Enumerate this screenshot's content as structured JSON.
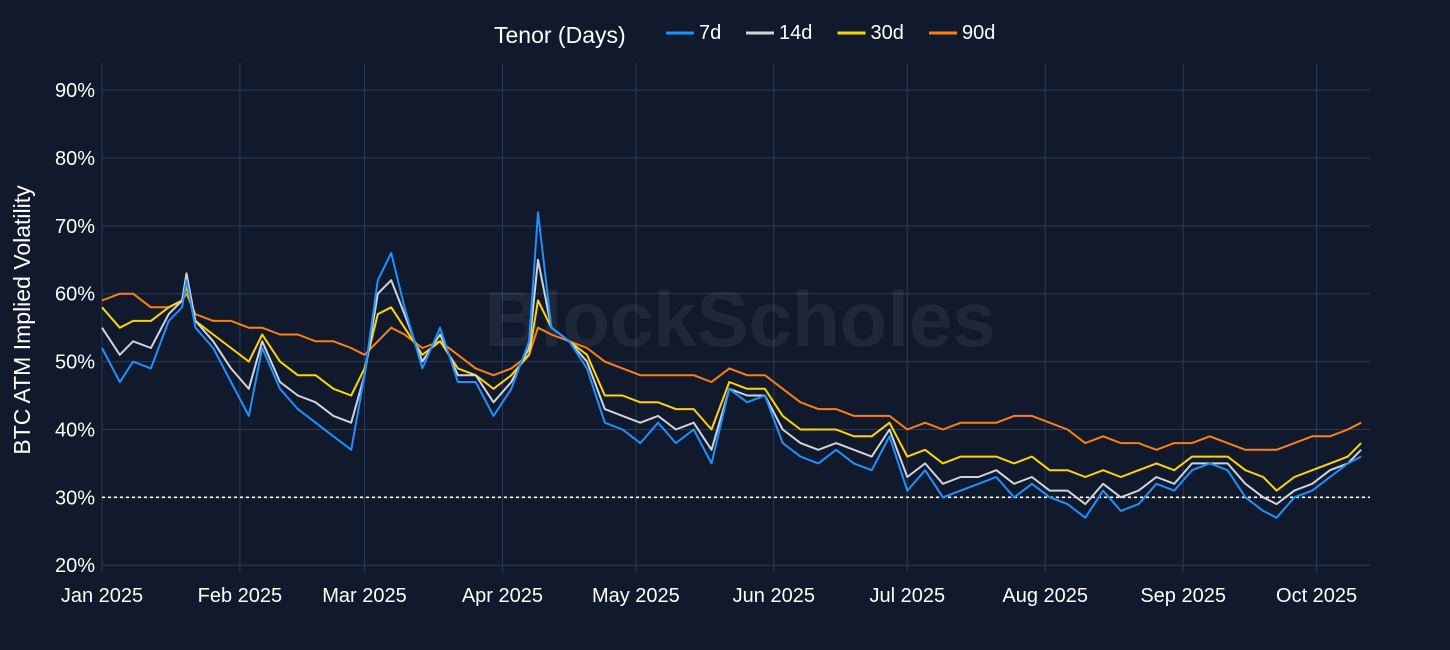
{
  "watermark": "BlockScholes",
  "legend": {
    "title": "Tenor (Days)",
    "items": [
      {
        "label": "7d",
        "color": "#1e90ff"
      },
      {
        "label": "14d",
        "color": "#cfd3da"
      },
      {
        "label": "30d",
        "color": "#ffd400"
      },
      {
        "label": "90d",
        "color": "#ff7f0e"
      }
    ]
  },
  "chart_data": {
    "type": "line",
    "title": "",
    "ylabel": "BTC ATM Implied Volatility",
    "xlabel": "",
    "ylim": [
      0.19,
      0.94
    ],
    "xlim": [
      "2025-01-01",
      "2025-10-13"
    ],
    "yticks": [
      {
        "value": 0.2,
        "label": "20%"
      },
      {
        "value": 0.3,
        "label": "30%"
      },
      {
        "value": 0.4,
        "label": "40%"
      },
      {
        "value": 0.5,
        "label": "50%"
      },
      {
        "value": 0.6,
        "label": "60%"
      },
      {
        "value": 0.7,
        "label": "70%"
      },
      {
        "value": 0.8,
        "label": "80%"
      },
      {
        "value": 0.9,
        "label": "90%"
      }
    ],
    "xticks": [
      {
        "value": "2025-01-01",
        "label": "Jan 2025"
      },
      {
        "value": "2025-02-01",
        "label": "Feb 2025"
      },
      {
        "value": "2025-03-01",
        "label": "Mar 2025"
      },
      {
        "value": "2025-04-01",
        "label": "Apr 2025"
      },
      {
        "value": "2025-05-01",
        "label": "May 2025"
      },
      {
        "value": "2025-06-01",
        "label": "Jun 2025"
      },
      {
        "value": "2025-07-01",
        "label": "Jul 2025"
      },
      {
        "value": "2025-08-01",
        "label": "Aug 2025"
      },
      {
        "value": "2025-09-01",
        "label": "Sep 2025"
      },
      {
        "value": "2025-10-01",
        "label": "Oct 2025"
      }
    ],
    "reference_line": {
      "value": 0.3,
      "style": "dotted",
      "color": "#ffffff"
    },
    "grid": true,
    "legend_placement": "top-center",
    "x": [
      "2025-01-01",
      "2025-01-05",
      "2025-01-08",
      "2025-01-12",
      "2025-01-16",
      "2025-01-19",
      "2025-01-20",
      "2025-01-22",
      "2025-01-26",
      "2025-01-30",
      "2025-02-03",
      "2025-02-06",
      "2025-02-10",
      "2025-02-14",
      "2025-02-18",
      "2025-02-22",
      "2025-02-26",
      "2025-03-01",
      "2025-03-04",
      "2025-03-07",
      "2025-03-10",
      "2025-03-14",
      "2025-03-18",
      "2025-03-22",
      "2025-03-26",
      "2025-03-30",
      "2025-04-03",
      "2025-04-07",
      "2025-04-09",
      "2025-04-12",
      "2025-04-16",
      "2025-04-20",
      "2025-04-24",
      "2025-04-28",
      "2025-05-02",
      "2025-05-06",
      "2025-05-10",
      "2025-05-14",
      "2025-05-18",
      "2025-05-22",
      "2025-05-26",
      "2025-05-30",
      "2025-06-03",
      "2025-06-07",
      "2025-06-11",
      "2025-06-15",
      "2025-06-19",
      "2025-06-23",
      "2025-06-27",
      "2025-07-01",
      "2025-07-05",
      "2025-07-09",
      "2025-07-13",
      "2025-07-17",
      "2025-07-21",
      "2025-07-25",
      "2025-07-29",
      "2025-08-02",
      "2025-08-06",
      "2025-08-10",
      "2025-08-14",
      "2025-08-18",
      "2025-08-22",
      "2025-08-26",
      "2025-08-30",
      "2025-09-03",
      "2025-09-07",
      "2025-09-11",
      "2025-09-15",
      "2025-09-19",
      "2025-09-22",
      "2025-09-26",
      "2025-09-30",
      "2025-10-04",
      "2025-10-08",
      "2025-10-11"
    ],
    "series": [
      {
        "name": "7d",
        "color": "#1e90ff",
        "values": [
          0.52,
          0.47,
          0.5,
          0.49,
          0.56,
          0.58,
          0.62,
          0.55,
          0.52,
          0.47,
          0.42,
          0.52,
          0.46,
          0.43,
          0.41,
          0.39,
          0.37,
          0.48,
          0.62,
          0.66,
          0.58,
          0.49,
          0.55,
          0.47,
          0.47,
          0.42,
          0.46,
          0.53,
          0.72,
          0.55,
          0.53,
          0.49,
          0.41,
          0.4,
          0.38,
          0.41,
          0.38,
          0.4,
          0.35,
          0.46,
          0.44,
          0.45,
          0.38,
          0.36,
          0.35,
          0.37,
          0.35,
          0.34,
          0.39,
          0.31,
          0.34,
          0.3,
          0.31,
          0.32,
          0.33,
          0.3,
          0.32,
          0.3,
          0.29,
          0.27,
          0.31,
          0.28,
          0.29,
          0.32,
          0.31,
          0.34,
          0.35,
          0.34,
          0.3,
          0.28,
          0.27,
          0.3,
          0.31,
          0.33,
          0.35,
          0.36
        ]
      },
      {
        "name": "14d",
        "color": "#cfd3da",
        "values": [
          0.55,
          0.51,
          0.53,
          0.52,
          0.57,
          0.59,
          0.63,
          0.56,
          0.53,
          0.49,
          0.46,
          0.53,
          0.47,
          0.45,
          0.44,
          0.42,
          0.41,
          0.48,
          0.6,
          0.62,
          0.57,
          0.5,
          0.54,
          0.48,
          0.48,
          0.44,
          0.47,
          0.52,
          0.65,
          0.55,
          0.53,
          0.5,
          0.43,
          0.42,
          0.41,
          0.42,
          0.4,
          0.41,
          0.37,
          0.46,
          0.45,
          0.45,
          0.4,
          0.38,
          0.37,
          0.38,
          0.37,
          0.36,
          0.4,
          0.33,
          0.35,
          0.32,
          0.33,
          0.33,
          0.34,
          0.32,
          0.33,
          0.31,
          0.31,
          0.29,
          0.32,
          0.3,
          0.31,
          0.33,
          0.32,
          0.35,
          0.35,
          0.35,
          0.32,
          0.3,
          0.29,
          0.31,
          0.32,
          0.34,
          0.35,
          0.37
        ]
      },
      {
        "name": "30d",
        "color": "#ffd400",
        "values": [
          0.58,
          0.55,
          0.56,
          0.56,
          0.58,
          0.59,
          0.61,
          0.56,
          0.54,
          0.52,
          0.5,
          0.54,
          0.5,
          0.48,
          0.48,
          0.46,
          0.45,
          0.49,
          0.57,
          0.58,
          0.55,
          0.51,
          0.53,
          0.49,
          0.48,
          0.46,
          0.48,
          0.51,
          0.59,
          0.55,
          0.53,
          0.51,
          0.45,
          0.45,
          0.44,
          0.44,
          0.43,
          0.43,
          0.4,
          0.47,
          0.46,
          0.46,
          0.42,
          0.4,
          0.4,
          0.4,
          0.39,
          0.39,
          0.41,
          0.36,
          0.37,
          0.35,
          0.36,
          0.36,
          0.36,
          0.35,
          0.36,
          0.34,
          0.34,
          0.33,
          0.34,
          0.33,
          0.34,
          0.35,
          0.34,
          0.36,
          0.36,
          0.36,
          0.34,
          0.33,
          0.31,
          0.33,
          0.34,
          0.35,
          0.36,
          0.38
        ]
      },
      {
        "name": "90d",
        "color": "#ff7f0e",
        "values": [
          0.59,
          0.6,
          0.6,
          0.58,
          0.58,
          0.59,
          0.6,
          0.57,
          0.56,
          0.56,
          0.55,
          0.55,
          0.54,
          0.54,
          0.53,
          0.53,
          0.52,
          0.51,
          0.53,
          0.55,
          0.54,
          0.52,
          0.53,
          0.51,
          0.49,
          0.48,
          0.49,
          0.51,
          0.55,
          0.54,
          0.53,
          0.52,
          0.5,
          0.49,
          0.48,
          0.48,
          0.48,
          0.48,
          0.47,
          0.49,
          0.48,
          0.48,
          0.46,
          0.44,
          0.43,
          0.43,
          0.42,
          0.42,
          0.42,
          0.4,
          0.41,
          0.4,
          0.41,
          0.41,
          0.41,
          0.42,
          0.42,
          0.41,
          0.4,
          0.38,
          0.39,
          0.38,
          0.38,
          0.37,
          0.38,
          0.38,
          0.39,
          0.38,
          0.37,
          0.37,
          0.37,
          0.38,
          0.39,
          0.39,
          0.4,
          0.41
        ]
      }
    ]
  }
}
